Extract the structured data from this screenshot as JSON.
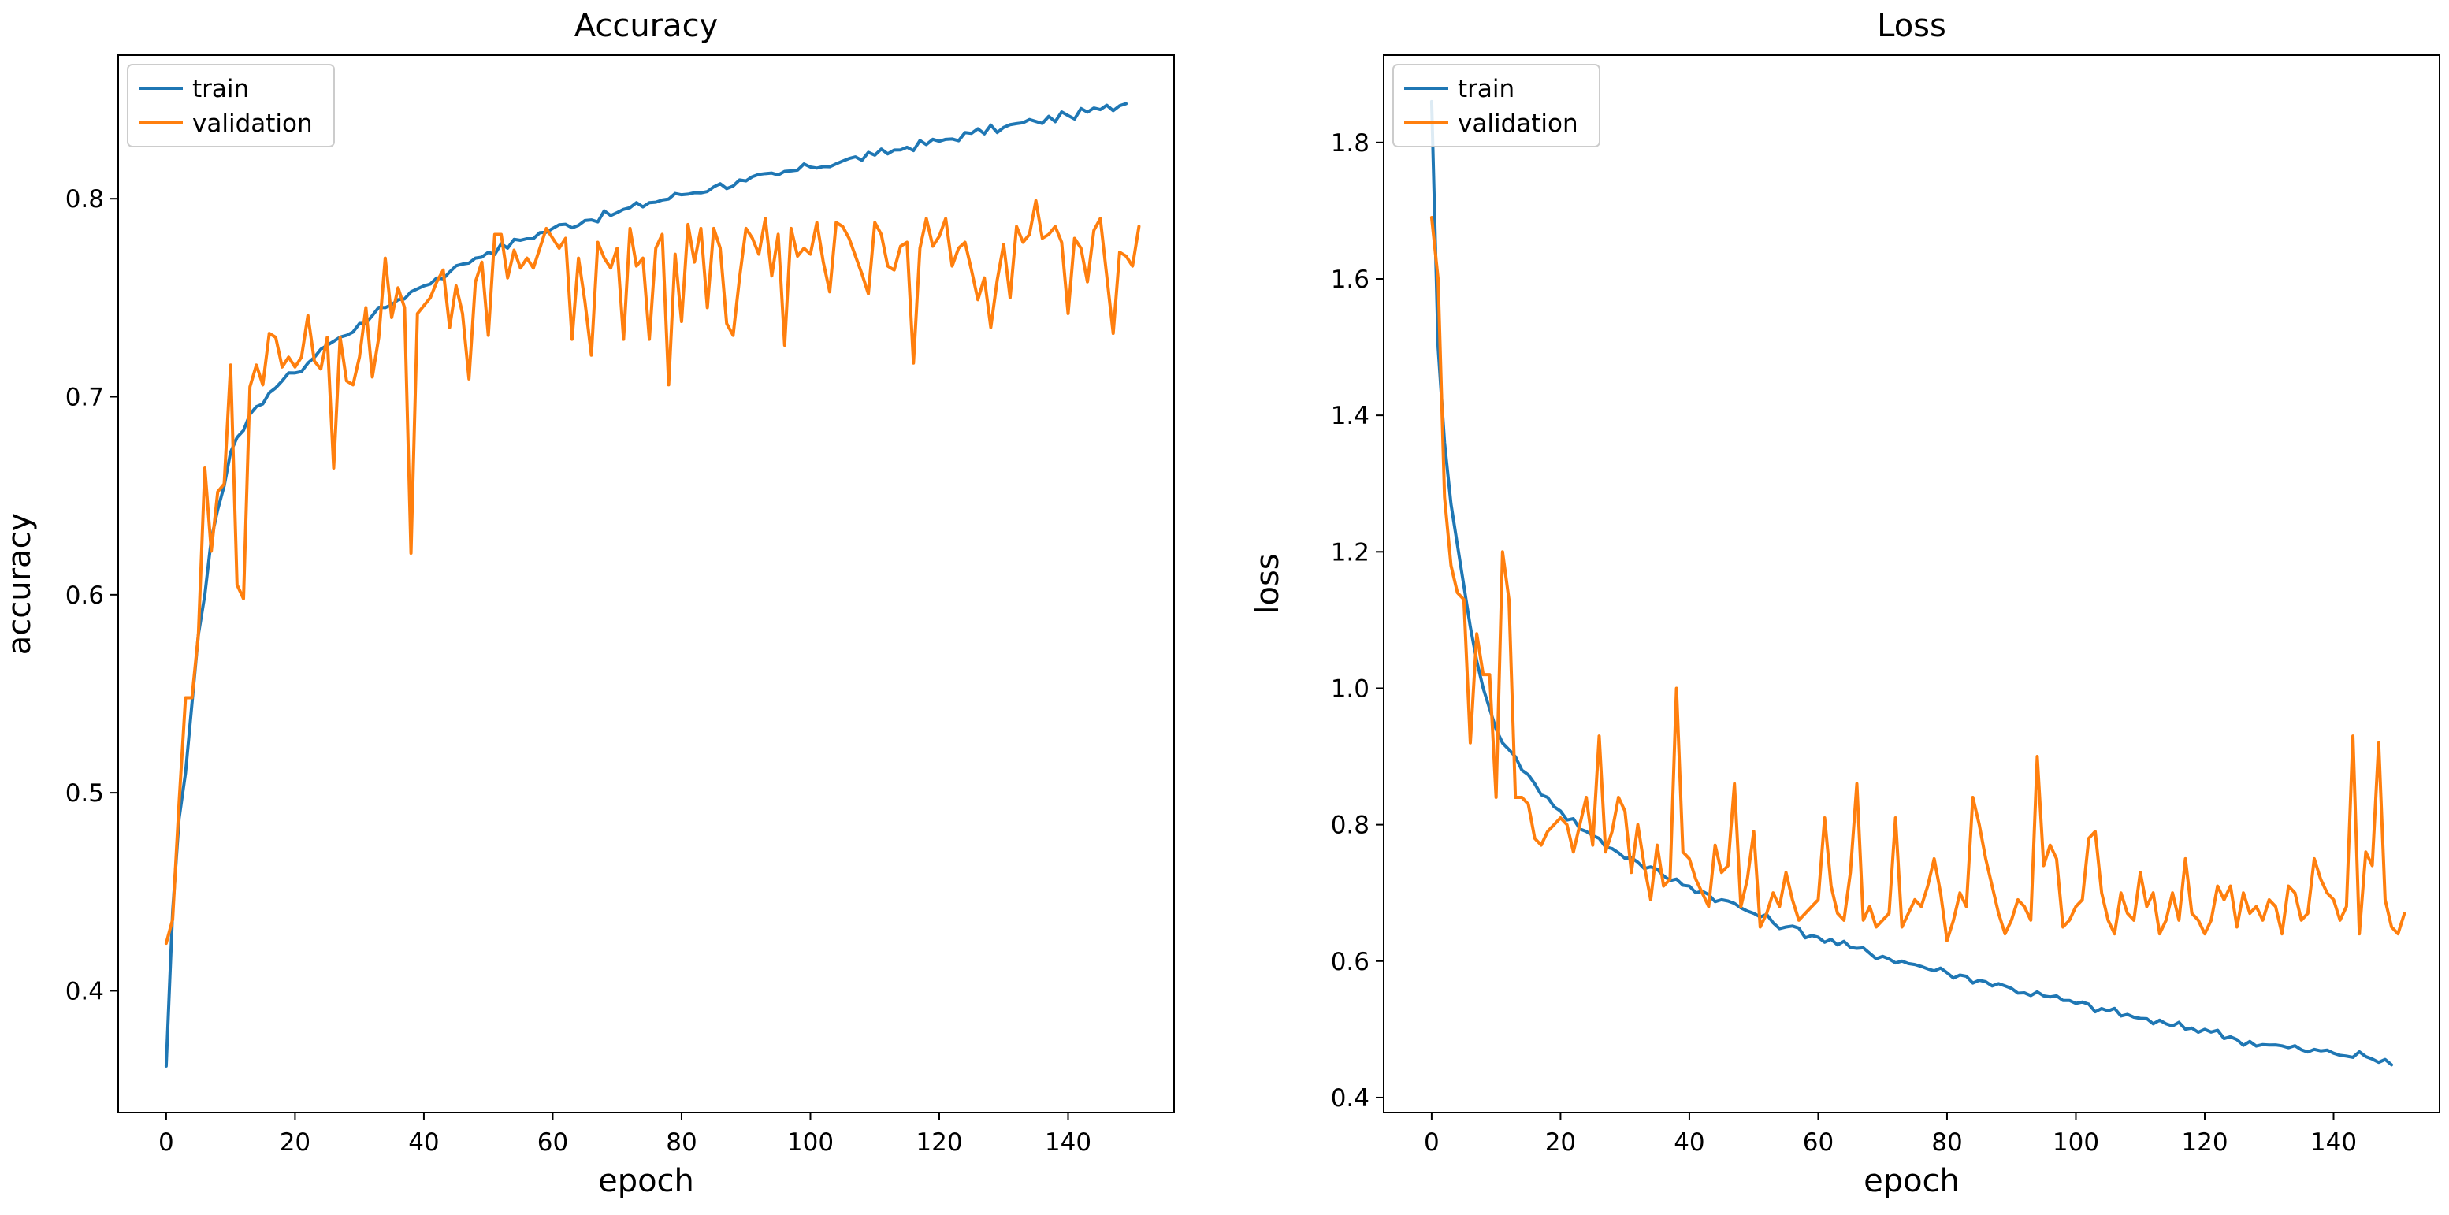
{
  "figure": {
    "background": "#ffffff"
  },
  "chart_data": [
    {
      "type": "line",
      "title": "Accuracy",
      "xlabel": "epoch",
      "ylabel": "accuracy",
      "xlim": [
        -7.45,
        156.45
      ],
      "ylim": [
        0.3385,
        0.8725
      ],
      "xticks": [
        0,
        20,
        40,
        60,
        80,
        100,
        120,
        140
      ],
      "yticks": [
        0.4,
        0.5,
        0.6,
        0.7,
        0.8
      ],
      "tick_labels_x": [
        "0",
        "20",
        "40",
        "60",
        "80",
        "100",
        "120",
        "140"
      ],
      "tick_labels_y": [
        "0.4",
        "0.5",
        "0.6",
        "0.7",
        "0.8"
      ],
      "grid": false,
      "legend": "top-left",
      "series": [
        {
          "name": "train",
          "color": "#1f77b4",
          "knots": [
            [
              0,
              0.362
            ],
            [
              1,
              0.44
            ],
            [
              2,
              0.487
            ],
            [
              3,
              0.51
            ],
            [
              4,
              0.545
            ],
            [
              5,
              0.58
            ],
            [
              6,
              0.6
            ],
            [
              7,
              0.628
            ],
            [
              8,
              0.643
            ],
            [
              9,
              0.655
            ],
            [
              10,
              0.672
            ],
            [
              12,
              0.683
            ],
            [
              14,
              0.695
            ],
            [
              16,
              0.702
            ],
            [
              18,
              0.708
            ],
            [
              20,
              0.712
            ],
            [
              22,
              0.717
            ],
            [
              24,
              0.724
            ],
            [
              26,
              0.728
            ],
            [
              28,
              0.731
            ],
            [
              30,
              0.737
            ],
            [
              32,
              0.741
            ],
            [
              34,
              0.745
            ],
            [
              36,
              0.749
            ],
            [
              38,
              0.753
            ],
            [
              40,
              0.756
            ],
            [
              42,
              0.76
            ],
            [
              44,
              0.763
            ],
            [
              46,
              0.767
            ],
            [
              48,
              0.77
            ],
            [
              50,
              0.773
            ],
            [
              55,
              0.779
            ],
            [
              60,
              0.785
            ],
            [
              65,
              0.789
            ],
            [
              70,
              0.793
            ],
            [
              75,
              0.798
            ],
            [
              80,
              0.802
            ],
            [
              85,
              0.806
            ],
            [
              90,
              0.809
            ],
            [
              95,
              0.812
            ],
            [
              100,
              0.816
            ],
            [
              105,
              0.819
            ],
            [
              110,
              0.822
            ],
            [
              115,
              0.826
            ],
            [
              120,
              0.829
            ],
            [
              125,
              0.833
            ],
            [
              130,
              0.836
            ],
            [
              135,
              0.839
            ],
            [
              140,
              0.842
            ],
            [
              145,
              0.845
            ],
            [
              149,
              0.848
            ]
          ],
          "noise": 0.0025
        },
        {
          "name": "validation",
          "color": "#ff7f0e",
          "values": [
            0.424,
            0.436,
            0.495,
            0.548,
            0.548,
            0.58,
            0.664,
            0.622,
            0.652,
            0.656,
            0.716,
            0.605,
            0.598,
            0.705,
            0.716,
            0.706,
            0.732,
            0.73,
            0.715,
            0.72,
            0.715,
            0.72,
            0.741,
            0.718,
            0.714,
            0.73,
            0.664,
            0.73,
            0.708,
            0.706,
            0.72,
            0.745,
            0.71,
            0.73,
            0.77,
            0.74,
            0.755,
            0.745,
            0.621,
            0.742,
            0.746,
            0.75,
            0.758,
            0.764,
            0.735,
            0.756,
            0.742,
            0.709,
            0.758,
            0.768,
            0.731,
            0.782,
            0.782,
            0.76,
            0.774,
            0.765,
            0.77,
            0.765,
            0.775,
            0.785,
            0.78,
            0.775,
            0.78,
            0.729,
            0.77,
            0.748,
            0.721,
            0.778,
            0.77,
            0.765,
            0.775,
            0.729,
            0.785,
            0.766,
            0.77,
            0.729,
            0.775,
            0.782,
            0.706,
            0.772,
            0.738,
            0.787,
            0.768,
            0.785,
            0.745,
            0.785,
            0.775,
            0.737,
            0.731,
            0.76,
            0.785,
            0.78,
            0.772,
            0.79,
            0.761,
            0.782,
            0.726,
            0.785,
            0.771,
            0.775,
            0.772,
            0.788,
            0.768,
            0.753,
            0.788,
            0.786,
            0.78,
            0.771,
            0.762,
            0.752,
            0.788,
            0.782,
            0.766,
            0.764,
            0.776,
            0.778,
            0.717,
            0.775,
            0.79,
            0.776,
            0.781,
            0.79,
            0.766,
            0.775,
            0.778,
            0.764,
            0.749,
            0.76,
            0.735,
            0.759,
            0.777,
            0.75,
            0.786,
            0.778,
            0.782,
            0.799,
            0.78,
            0.782,
            0.786,
            0.778,
            0.742,
            0.78,
            0.775,
            0.758,
            0.784,
            0.79,
            0.761,
            0.732,
            0.773,
            0.771,
            0.766,
            0.786
          ]
        }
      ]
    },
    {
      "type": "line",
      "title": "Loss",
      "xlabel": "epoch",
      "ylabel": "loss",
      "xlim": [
        -7.45,
        156.45
      ],
      "ylim": [
        0.378,
        1.928
      ],
      "xticks": [
        0,
        20,
        40,
        60,
        80,
        100,
        120,
        140
      ],
      "yticks": [
        0.4,
        0.6,
        0.8,
        1.0,
        1.2,
        1.4,
        1.6,
        1.8
      ],
      "tick_labels_x": [
        "0",
        "20",
        "40",
        "60",
        "80",
        "100",
        "120",
        "140"
      ],
      "tick_labels_y": [
        "0.4",
        "0.6",
        "0.8",
        "1.0",
        "1.2",
        "1.4",
        "1.6",
        "1.8"
      ],
      "grid": false,
      "legend": "top-left",
      "series": [
        {
          "name": "train",
          "color": "#1f77b4",
          "knots": [
            [
              0,
              1.86
            ],
            [
              1,
              1.5
            ],
            [
              2,
              1.36
            ],
            [
              3,
              1.27
            ],
            [
              4,
              1.21
            ],
            [
              5,
              1.15
            ],
            [
              6,
              1.09
            ],
            [
              7,
              1.04
            ],
            [
              8,
              1.0
            ],
            [
              9,
              0.97
            ],
            [
              10,
              0.94
            ],
            [
              12,
              0.91
            ],
            [
              14,
              0.88
            ],
            [
              16,
              0.86
            ],
            [
              18,
              0.84
            ],
            [
              20,
              0.82
            ],
            [
              24,
              0.79
            ],
            [
              28,
              0.765
            ],
            [
              32,
              0.745
            ],
            [
              36,
              0.725
            ],
            [
              40,
              0.71
            ],
            [
              45,
              0.69
            ],
            [
              50,
              0.67
            ],
            [
              55,
              0.65
            ],
            [
              60,
              0.635
            ],
            [
              65,
              0.62
            ],
            [
              70,
              0.607
            ],
            [
              75,
              0.595
            ],
            [
              80,
              0.583
            ],
            [
              85,
              0.572
            ],
            [
              90,
              0.56
            ],
            [
              95,
              0.549
            ],
            [
              100,
              0.538
            ],
            [
              105,
              0.527
            ],
            [
              110,
              0.516
            ],
            [
              115,
              0.505
            ],
            [
              120,
              0.5
            ],
            [
              125,
              0.485
            ],
            [
              130,
              0.477
            ],
            [
              135,
              0.47
            ],
            [
              140,
              0.465
            ],
            [
              145,
              0.46
            ],
            [
              149,
              0.448
            ]
          ],
          "noise": 0.007
        },
        {
          "name": "validation",
          "color": "#ff7f0e",
          "values": [
            1.69,
            1.6,
            1.28,
            1.18,
            1.14,
            1.13,
            0.92,
            1.08,
            1.02,
            1.02,
            0.84,
            1.2,
            1.13,
            0.84,
            0.84,
            0.83,
            0.78,
            0.77,
            0.79,
            0.8,
            0.81,
            0.8,
            0.76,
            0.8,
            0.84,
            0.77,
            0.93,
            0.76,
            0.79,
            0.84,
            0.82,
            0.73,
            0.8,
            0.74,
            0.69,
            0.77,
            0.71,
            0.72,
            1.0,
            0.76,
            0.75,
            0.72,
            0.7,
            0.68,
            0.77,
            0.73,
            0.74,
            0.86,
            0.68,
            0.72,
            0.79,
            0.65,
            0.67,
            0.7,
            0.68,
            0.73,
            0.69,
            0.66,
            0.67,
            0.68,
            0.69,
            0.81,
            0.71,
            0.67,
            0.66,
            0.73,
            0.86,
            0.66,
            0.68,
            0.65,
            0.66,
            0.67,
            0.81,
            0.65,
            0.67,
            0.69,
            0.68,
            0.71,
            0.75,
            0.7,
            0.63,
            0.66,
            0.7,
            0.68,
            0.84,
            0.8,
            0.75,
            0.71,
            0.67,
            0.64,
            0.66,
            0.69,
            0.68,
            0.66,
            0.9,
            0.74,
            0.77,
            0.75,
            0.65,
            0.66,
            0.68,
            0.69,
            0.78,
            0.79,
            0.7,
            0.66,
            0.64,
            0.7,
            0.67,
            0.66,
            0.73,
            0.68,
            0.7,
            0.64,
            0.66,
            0.7,
            0.66,
            0.75,
            0.67,
            0.66,
            0.64,
            0.66,
            0.71,
            0.69,
            0.71,
            0.65,
            0.7,
            0.67,
            0.68,
            0.66,
            0.69,
            0.68,
            0.64,
            0.71,
            0.7,
            0.66,
            0.67,
            0.75,
            0.72,
            0.7,
            0.69,
            0.66,
            0.68,
            0.93,
            0.64,
            0.76,
            0.74,
            0.92,
            0.69,
            0.65,
            0.64,
            0.67
          ]
        }
      ]
    }
  ]
}
